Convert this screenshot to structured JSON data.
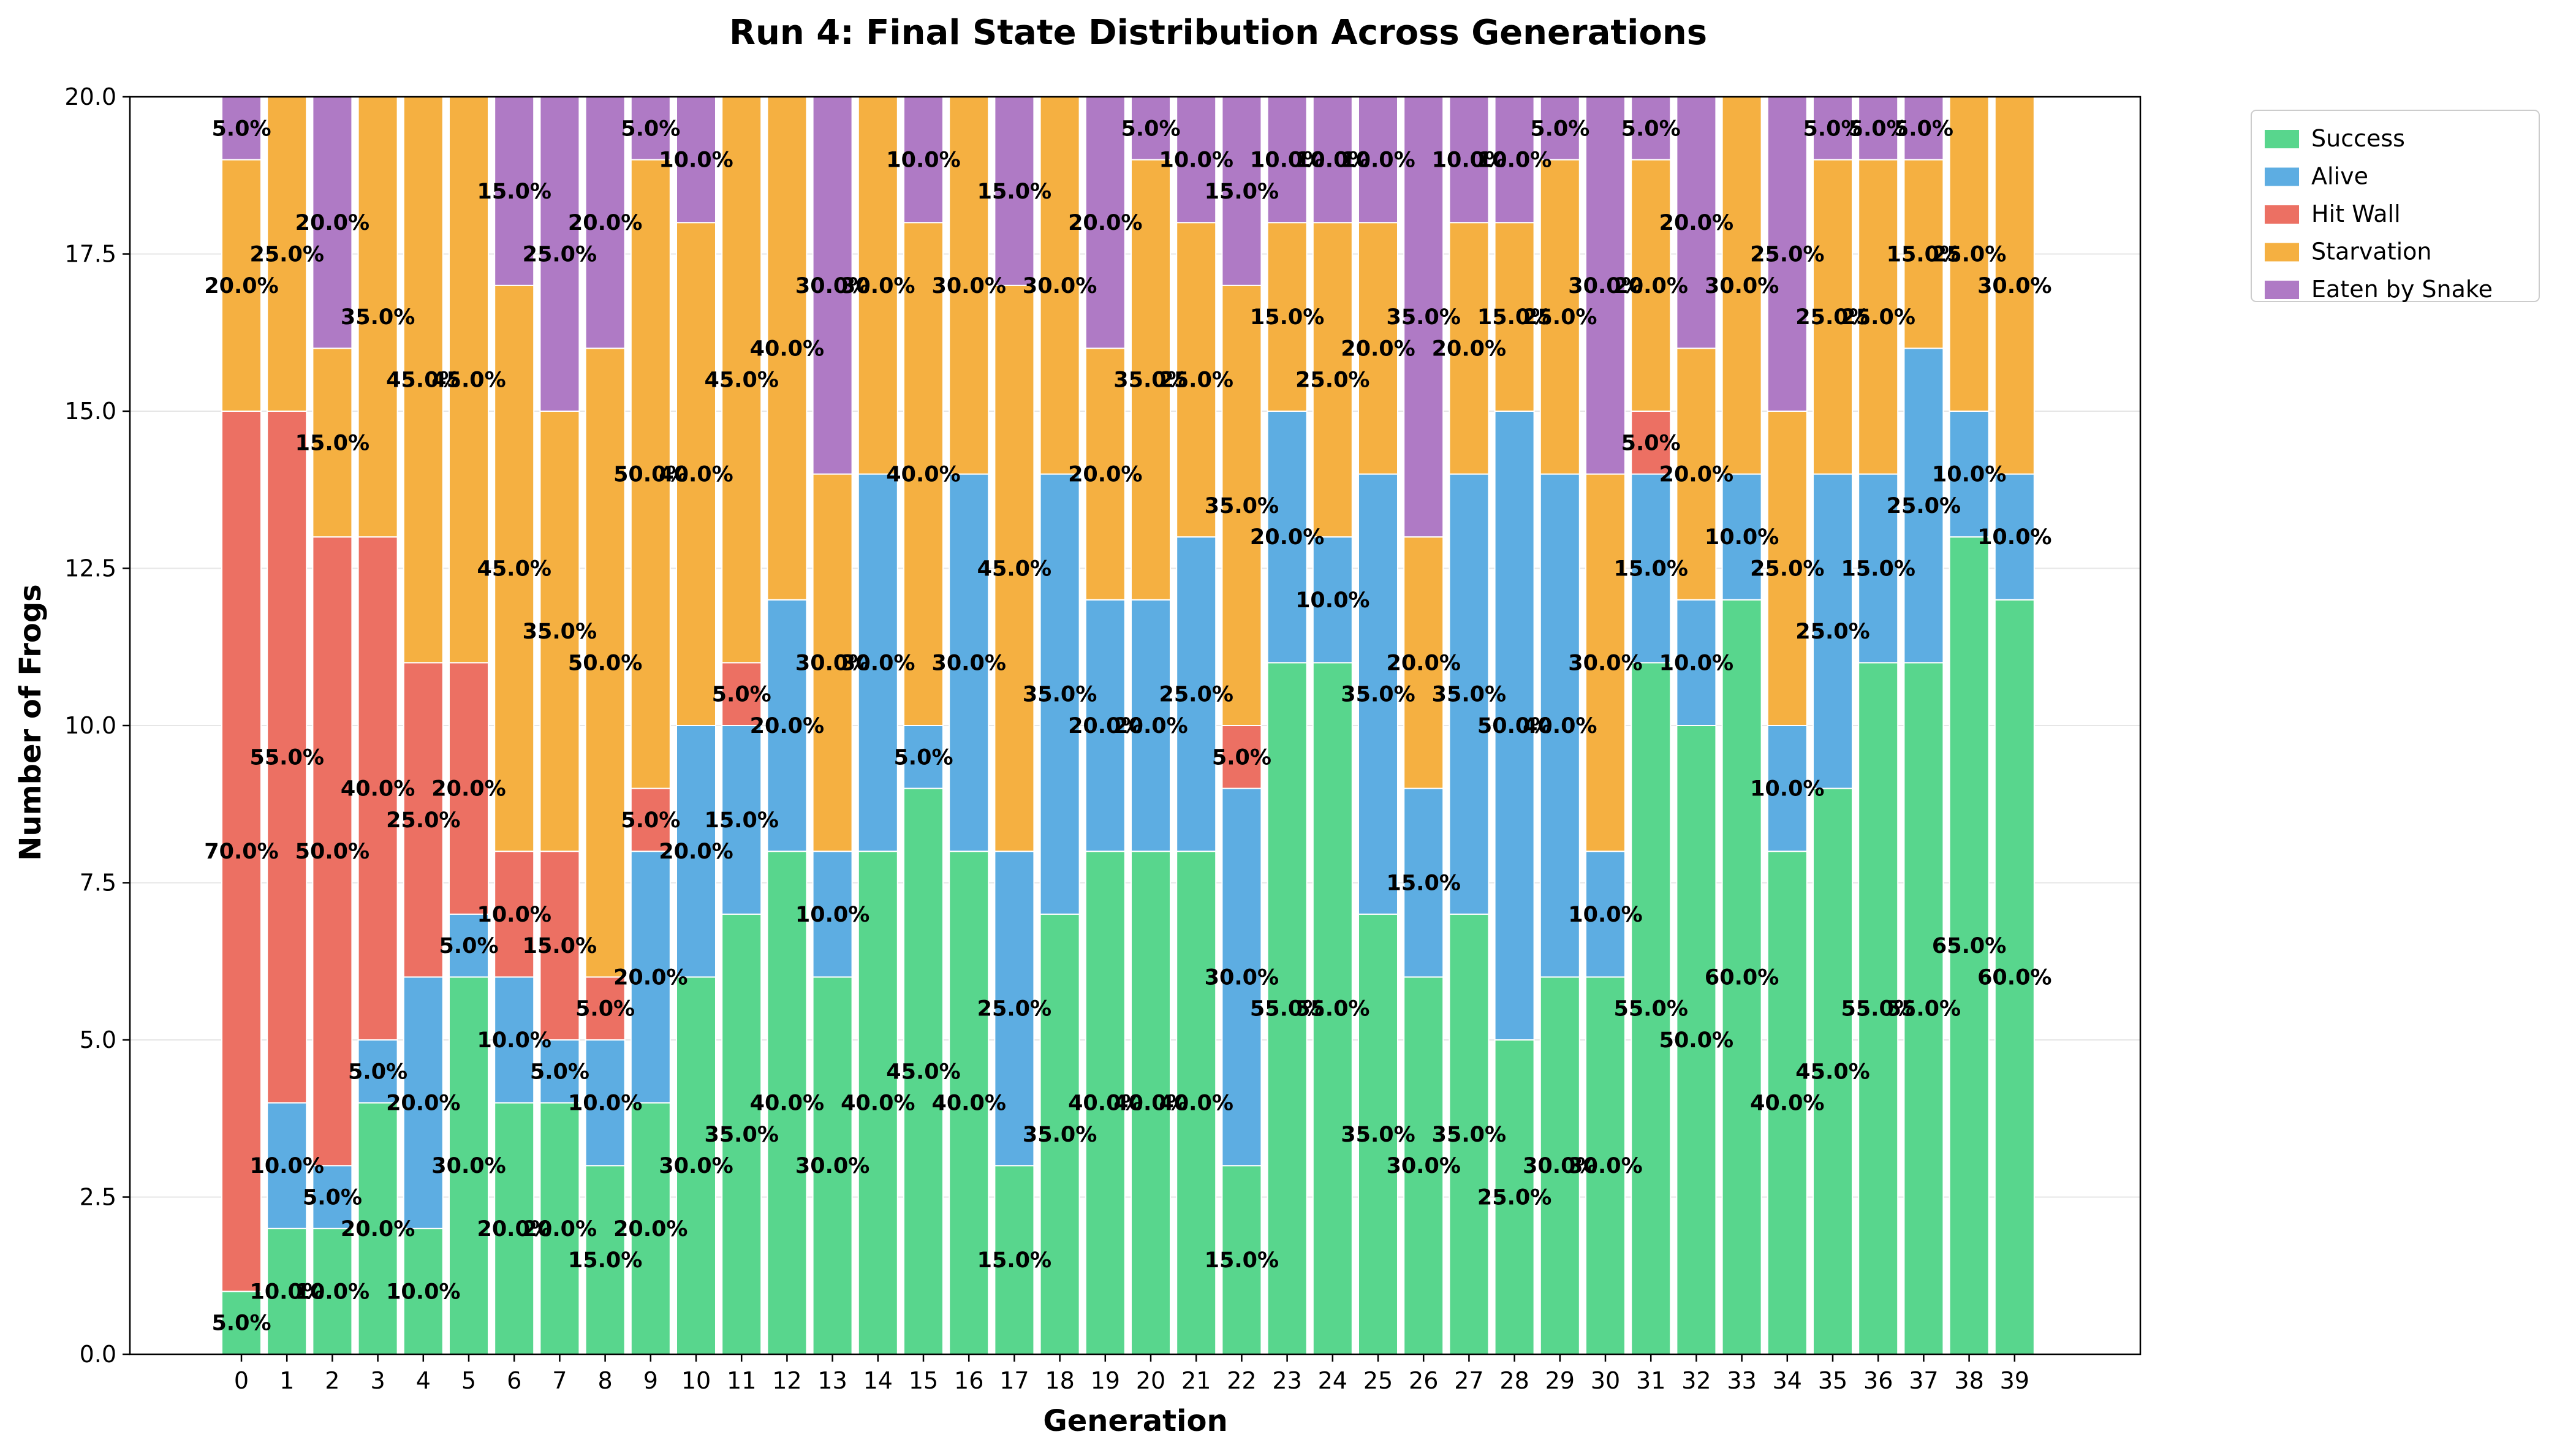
{
  "chart_data": {
    "type": "bar",
    "stacked": true,
    "title": "Run 4: Final State Distribution Across Generations",
    "xlabel": "Generation",
    "ylabel": "Number of Frogs",
    "ylim": [
      0,
      20
    ],
    "yticks": [
      "0.0",
      "2.5",
      "5.0",
      "7.5",
      "10.0",
      "12.5",
      "15.0",
      "17.5",
      "20.0"
    ],
    "grid": "horizontal",
    "legend_position": "outside upper right",
    "categories": [
      "0",
      "1",
      "2",
      "3",
      "4",
      "5",
      "6",
      "7",
      "8",
      "9",
      "10",
      "11",
      "12",
      "13",
      "14",
      "15",
      "16",
      "17",
      "18",
      "19",
      "20",
      "21",
      "22",
      "23",
      "24",
      "25",
      "26",
      "27",
      "28",
      "29",
      "30",
      "31",
      "32",
      "33",
      "34",
      "35",
      "36",
      "37",
      "38",
      "39"
    ],
    "total_per_generation": 20,
    "series": [
      {
        "name": "Success",
        "color": "#58D68D",
        "values": [
          1,
          2,
          2,
          4,
          2,
          6,
          4,
          4,
          3,
          4,
          6,
          7,
          8,
          6,
          8,
          9,
          8,
          3,
          7,
          8,
          8,
          8,
          3,
          11,
          11,
          7,
          6,
          7,
          5,
          6,
          6,
          11,
          10,
          12,
          8,
          9,
          11,
          11,
          13,
          12
        ]
      },
      {
        "name": "Alive",
        "color": "#5DADE2",
        "values": [
          0,
          2,
          1,
          1,
          4,
          1,
          2,
          1,
          2,
          4,
          4,
          3,
          4,
          2,
          6,
          1,
          6,
          5,
          7,
          4,
          4,
          5,
          6,
          4,
          2,
          7,
          3,
          7,
          10,
          8,
          2,
          3,
          2,
          2,
          2,
          5,
          3,
          5,
          2,
          2
        ]
      },
      {
        "name": "Hit Wall",
        "color": "#EC7063",
        "values": [
          14,
          11,
          10,
          8,
          5,
          4,
          2,
          3,
          1,
          1,
          0,
          1,
          0,
          0,
          0,
          0,
          0,
          0,
          0,
          0,
          0,
          0,
          1,
          0,
          0,
          0,
          0,
          0,
          0,
          0,
          0,
          1,
          0,
          0,
          0,
          0,
          0,
          0,
          0,
          0
        ]
      },
      {
        "name": "Starvation",
        "color": "#F5B041",
        "values": [
          4,
          5,
          3,
          7,
          9,
          9,
          9,
          7,
          10,
          10,
          8,
          9,
          8,
          6,
          6,
          8,
          6,
          9,
          6,
          4,
          7,
          5,
          7,
          3,
          5,
          4,
          4,
          4,
          3,
          5,
          6,
          4,
          4,
          6,
          5,
          5,
          5,
          3,
          5,
          6
        ]
      },
      {
        "name": "Eaten by Snake",
        "color": "#AF7AC5",
        "values": [
          1,
          0,
          4,
          0,
          0,
          0,
          3,
          5,
          4,
          1,
          2,
          0,
          0,
          6,
          0,
          2,
          0,
          3,
          0,
          4,
          1,
          2,
          3,
          2,
          2,
          2,
          7,
          2,
          2,
          1,
          6,
          1,
          4,
          0,
          5,
          1,
          1,
          1,
          0,
          0
        ]
      }
    ]
  }
}
